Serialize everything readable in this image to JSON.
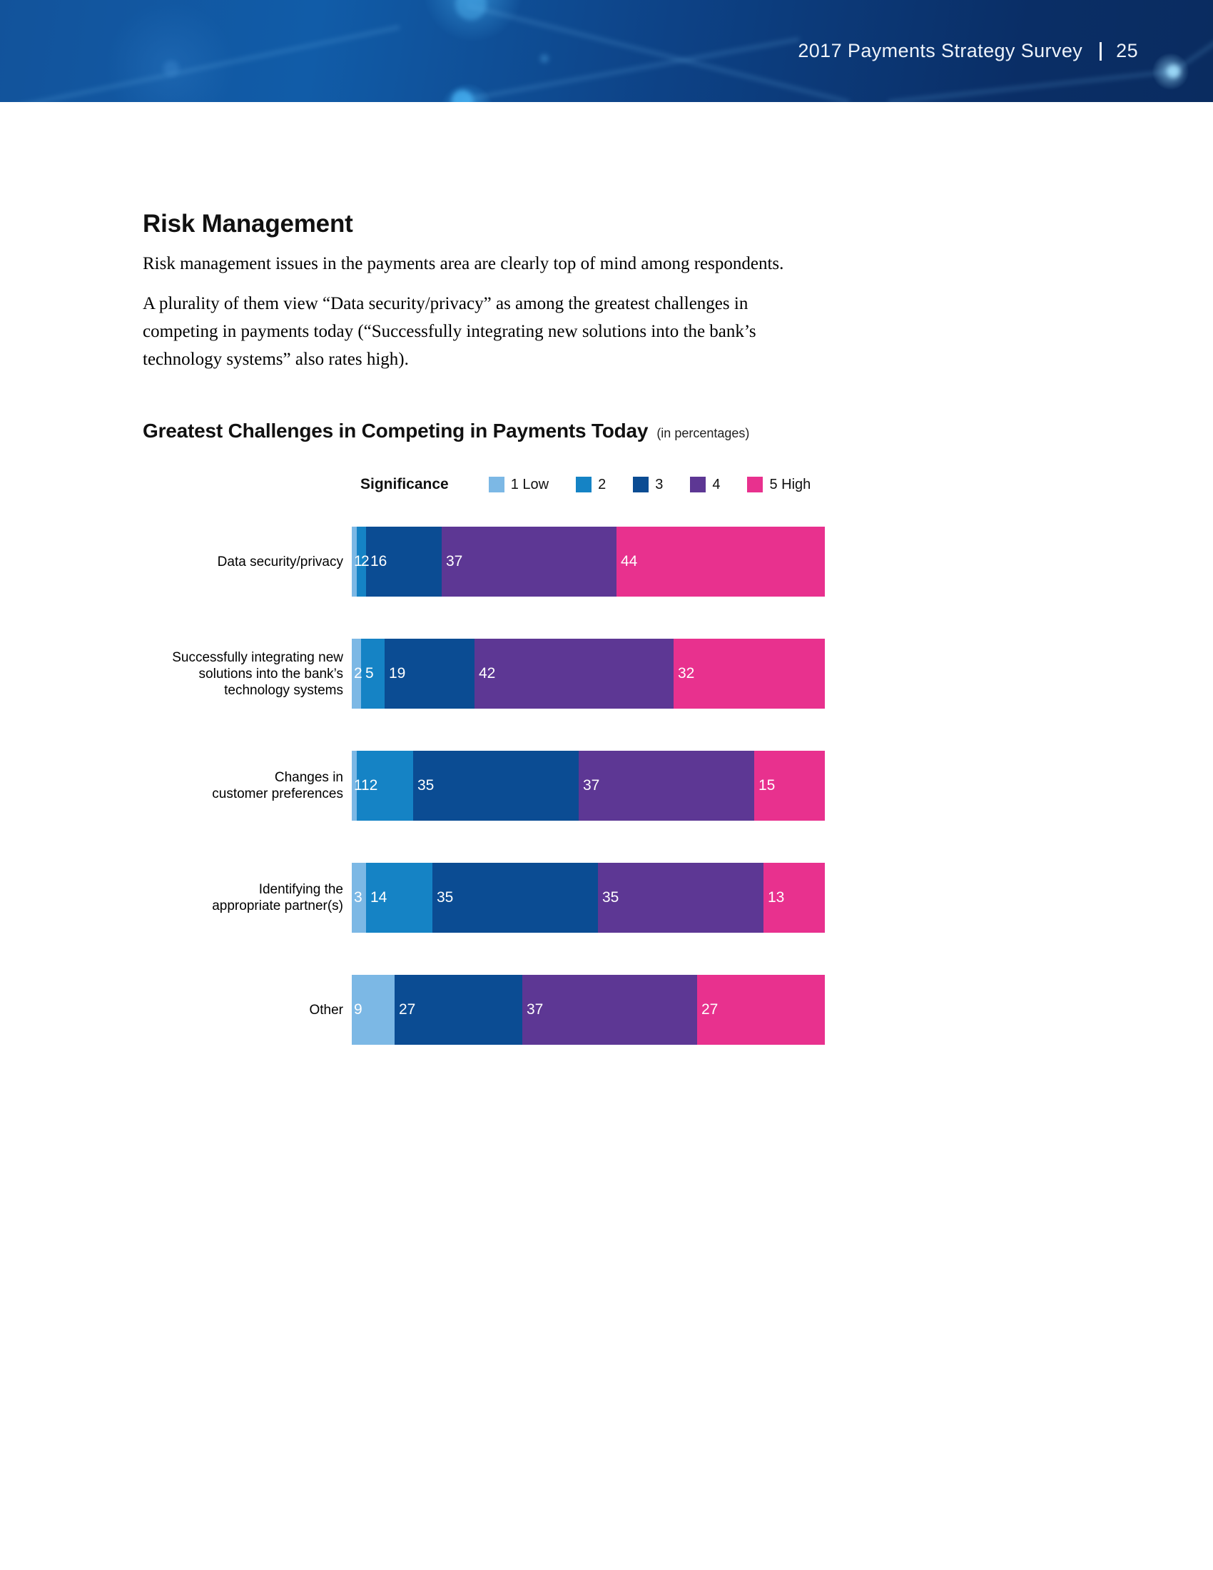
{
  "header": {
    "title": "2017 Payments Strategy Survey",
    "page_number": "25"
  },
  "section": {
    "title": "Risk Management",
    "intro": "Risk management issues in the payments area are clearly top of mind among respondents.",
    "body": "A plurality of them view “Data security/privacy” as among the greatest challenges in\ncompeting in payments today (“Successfully integrating new solutions into the bank’s\ntechnology systems” also rates high)."
  },
  "chart": {
    "title": "Greatest Challenges in Competing in Payments Today",
    "subtitle": "(in percentages)",
    "legend_title": "Significance"
  },
  "chart_data": {
    "type": "bar",
    "orientation": "horizontal",
    "stacked": true,
    "unit": "percent",
    "xlim": [
      0,
      100
    ],
    "grid": false,
    "legend_position": "top",
    "title": "Greatest Challenges in Competing in Payments Today (in percentages)",
    "legend_title": "Significance",
    "series": [
      {
        "name": "1 Low",
        "color": "#7cb8e5"
      },
      {
        "name": "2",
        "color": "#1583c5"
      },
      {
        "name": "3",
        "color": "#0b4c93"
      },
      {
        "name": "4",
        "color": "#5d3794"
      },
      {
        "name": "5 High",
        "color": "#e8318e"
      }
    ],
    "categories": [
      {
        "label": "Data security/privacy",
        "values": {
          "1 Low": 1,
          "2": 2,
          "3": 16,
          "4": 37,
          "5 High": 44
        }
      },
      {
        "label": "Successfully integrating new\nsolutions into the bank’s\ntechnology systems",
        "values": {
          "1 Low": 2,
          "2": 5,
          "3": 19,
          "4": 42,
          "5 High": 32
        }
      },
      {
        "label": "Changes in\ncustomer preferences",
        "values": {
          "1 Low": 1,
          "2": 12,
          "3": 35,
          "4": 37,
          "5 High": 15
        }
      },
      {
        "label": "Identifying the\nappropriate partner(s)",
        "values": {
          "1 Low": 3,
          "2": 14,
          "3": 35,
          "4": 35,
          "5 High": 13
        }
      },
      {
        "label": "Other",
        "values": {
          "1 Low": 9,
          "2": 0,
          "3": 27,
          "4": 37,
          "5 High": 27
        }
      }
    ]
  },
  "colors": {
    "banner_left": "#12539b",
    "banner_right": "#0a2c60",
    "seg_1_low": "#7cb8e5",
    "seg_2": "#1583c5",
    "seg_3": "#0b4c93",
    "seg_4": "#5d3794",
    "seg_5_high": "#e8318e"
  }
}
